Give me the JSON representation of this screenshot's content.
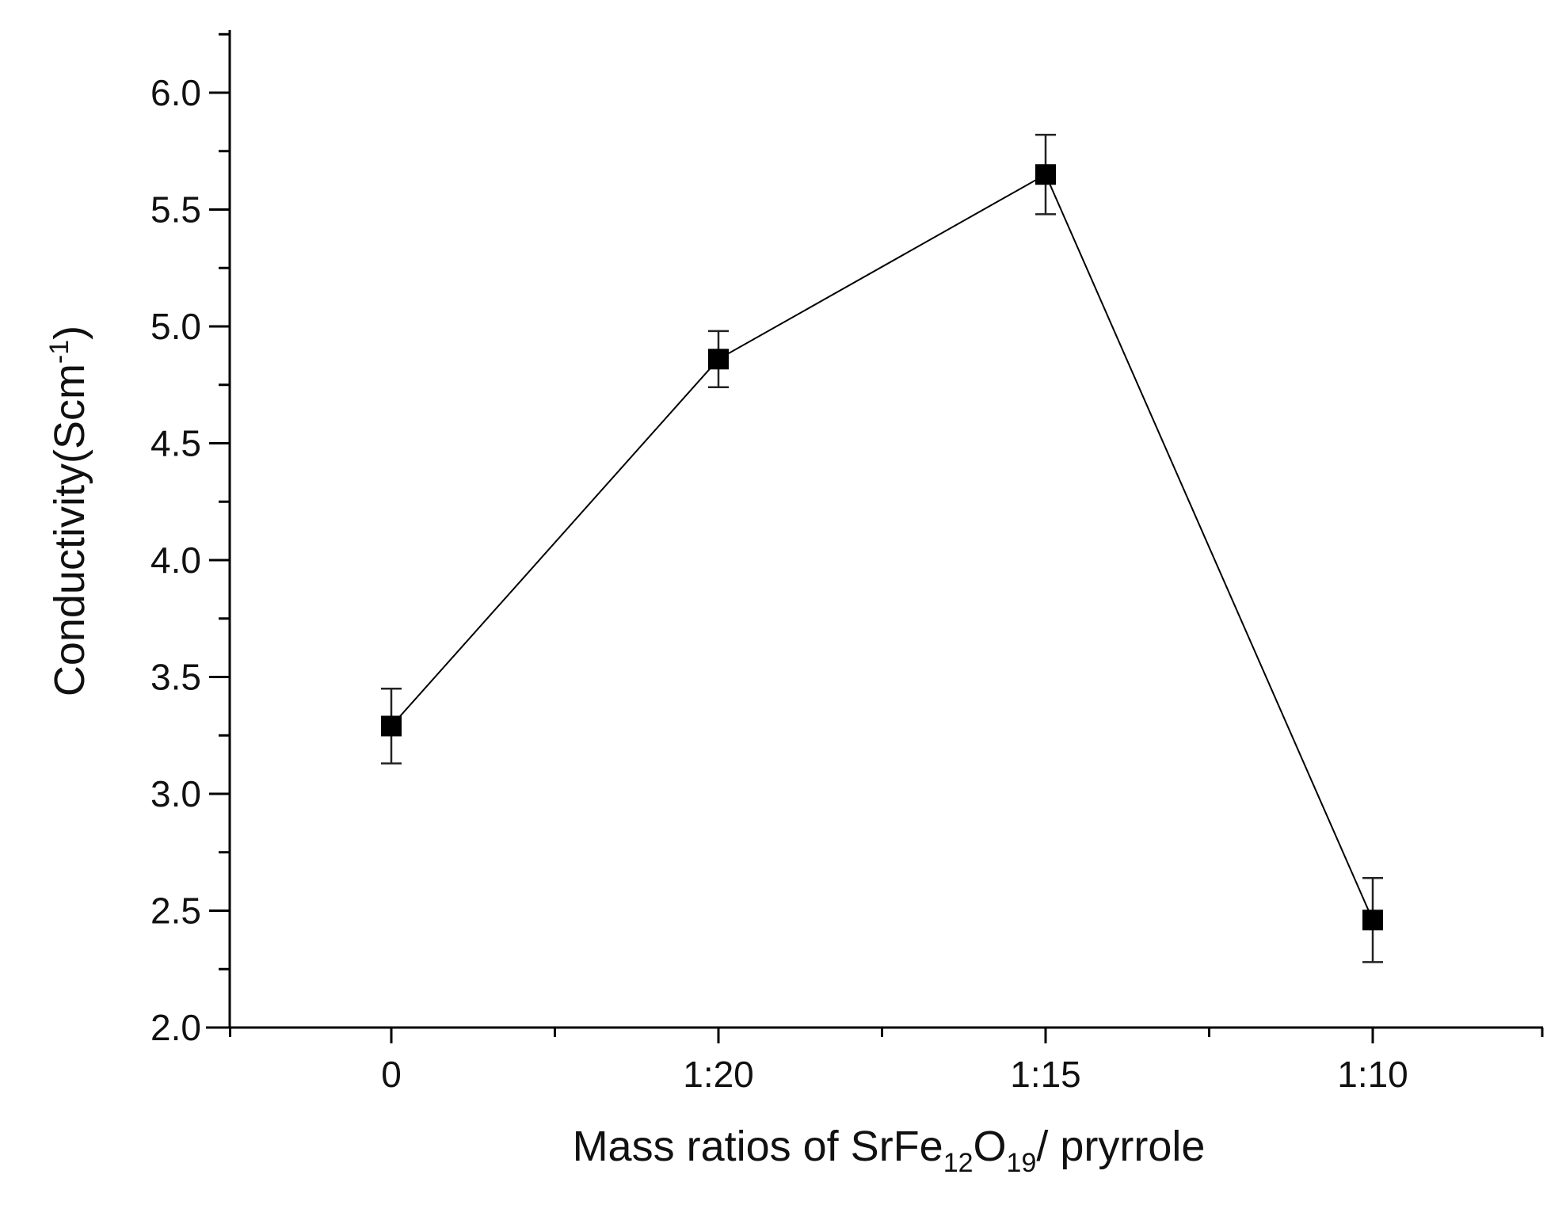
{
  "chart_data": {
    "type": "line",
    "title": "",
    "xlabel": {
      "text": "Mass ratios of SrFe",
      "sub1": "12",
      "mid": "O",
      "sub2": "19",
      "tail": "/ pryrrole"
    },
    "ylabel": {
      "text": "Conductivity(Scm",
      "sup": "-1",
      "tail": ")"
    },
    "categories": [
      "0",
      "1:20",
      "1:15",
      "1:10"
    ],
    "series": [
      {
        "values": [
          3.29,
          4.86,
          5.65,
          2.46
        ],
        "errors": [
          0.16,
          0.12,
          0.17,
          0.18
        ],
        "marker": "square",
        "color": "#000000"
      }
    ],
    "ylim": [
      2.0,
      6.25
    ],
    "yticks": [
      "2.0",
      "2.5",
      "3.0",
      "3.5",
      "4.0",
      "4.5",
      "5.0",
      "5.5",
      "6.0"
    ],
    "xlim": [
      -0.5,
      3.5
    ],
    "grid": false,
    "legend": "none"
  }
}
